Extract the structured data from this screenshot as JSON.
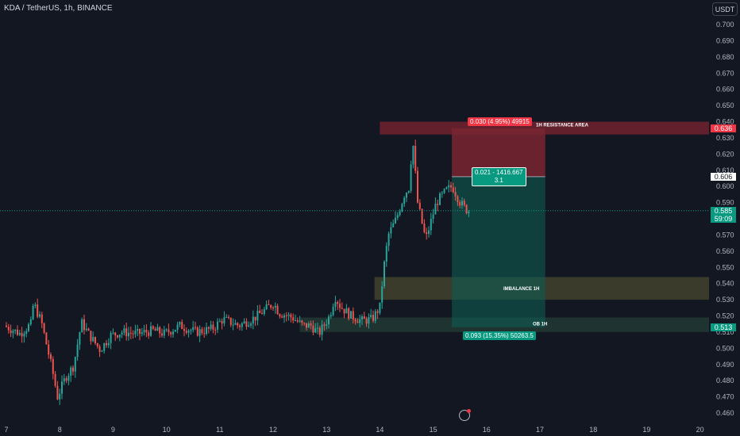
{
  "header": {
    "title": "KDA / TetherUS, 1h, BINANCE",
    "currency_button": "USDT"
  },
  "colors": {
    "up": "#26a69a",
    "down": "#ef5350",
    "resistance_zone": "#7e2431",
    "stop_zone": "#7a2630",
    "target_zone": "#0d5c52",
    "imbalance_zone": "#5b5a33",
    "ob_zone": "#2a4b3d",
    "current_price": "#089981"
  },
  "chart_data": {
    "type": "candlestick",
    "symbol": "KDA / TetherUS",
    "interval": "1h",
    "exchange": "BINANCE",
    "y_ticks": [
      "0.700",
      "0.690",
      "0.680",
      "0.670",
      "0.660",
      "0.650",
      "0.640",
      "0.630",
      "0.620",
      "0.610",
      "0.600",
      "0.590",
      "0.580",
      "0.570",
      "0.560",
      "0.550",
      "0.540",
      "0.530",
      "0.520",
      "0.510",
      "0.500",
      "0.490",
      "0.480",
      "0.470",
      "0.460"
    ],
    "ylim": [
      0.455,
      0.705
    ],
    "x_ticks": [
      "7",
      "8",
      "9",
      "10",
      "11",
      "12",
      "13",
      "14",
      "15",
      "16",
      "17",
      "18",
      "19",
      "20"
    ],
    "xlim_days": [
      7,
      20
    ],
    "price_path": [
      [
        7.0,
        0.514
      ],
      [
        7.3,
        0.509
      ],
      [
        7.5,
        0.515
      ],
      [
        7.55,
        0.528
      ],
      [
        7.7,
        0.516
      ],
      [
        7.9,
        0.487
      ],
      [
        8.0,
        0.47
      ],
      [
        8.15,
        0.482
      ],
      [
        8.3,
        0.489
      ],
      [
        8.45,
        0.516
      ],
      [
        8.6,
        0.508
      ],
      [
        8.8,
        0.499
      ],
      [
        9.0,
        0.508
      ],
      [
        9.2,
        0.51
      ],
      [
        9.5,
        0.509
      ],
      [
        9.8,
        0.511
      ],
      [
        10.0,
        0.509
      ],
      [
        10.3,
        0.514
      ],
      [
        10.6,
        0.51
      ],
      [
        10.9,
        0.512
      ],
      [
        11.1,
        0.518
      ],
      [
        11.4,
        0.514
      ],
      [
        11.7,
        0.519
      ],
      [
        11.9,
        0.524
      ],
      [
        12.05,
        0.528
      ],
      [
        12.15,
        0.522
      ],
      [
        12.4,
        0.519
      ],
      [
        12.6,
        0.514
      ],
      [
        12.75,
        0.514
      ],
      [
        12.9,
        0.509
      ],
      [
        13.1,
        0.52
      ],
      [
        13.2,
        0.532
      ],
      [
        13.3,
        0.526
      ],
      [
        13.5,
        0.52
      ],
      [
        13.7,
        0.517
      ],
      [
        13.9,
        0.518
      ],
      [
        14.05,
        0.526
      ],
      [
        14.1,
        0.546
      ],
      [
        14.2,
        0.57
      ],
      [
        14.35,
        0.58
      ],
      [
        14.5,
        0.595
      ],
      [
        14.6,
        0.6
      ],
      [
        14.65,
        0.632
      ],
      [
        14.75,
        0.59
      ],
      [
        14.9,
        0.567
      ],
      [
        15.1,
        0.59
      ],
      [
        15.3,
        0.598
      ],
      [
        15.4,
        0.6
      ],
      [
        15.55,
        0.59
      ],
      [
        15.65,
        0.586
      ],
      [
        15.7,
        0.585
      ]
    ],
    "current_price": {
      "value": "0.585",
      "countdown": "59:09"
    },
    "zones": [
      {
        "name": "1H RESISTANCE AREA",
        "top": 0.64,
        "bottom": 0.636,
        "x_start": 14.0,
        "x_end": 20.2
      },
      {
        "name": "IMBALANCE 1H",
        "top": 0.544,
        "bottom": 0.53,
        "x_start": 13.9,
        "x_end": 20.2
      },
      {
        "name": "OB 1H",
        "top": 0.519,
        "bottom": 0.51,
        "x_start": 12.5,
        "x_end": 20.2
      }
    ],
    "position": {
      "type": "long",
      "entry": 0.606,
      "stop": 0.636,
      "target": 0.513,
      "x_start": 15.35,
      "x_end": 17.1,
      "stop_label": "0.030 (4.95%) 49915",
      "entry_label_1": "0.021 - 1416.667",
      "entry_label_2": "3.1",
      "target_label": "0.093 (15.35%) 50263.5"
    },
    "price_tags": {
      "stop": "0.636",
      "entry": "0.606",
      "target": "0.513"
    }
  }
}
